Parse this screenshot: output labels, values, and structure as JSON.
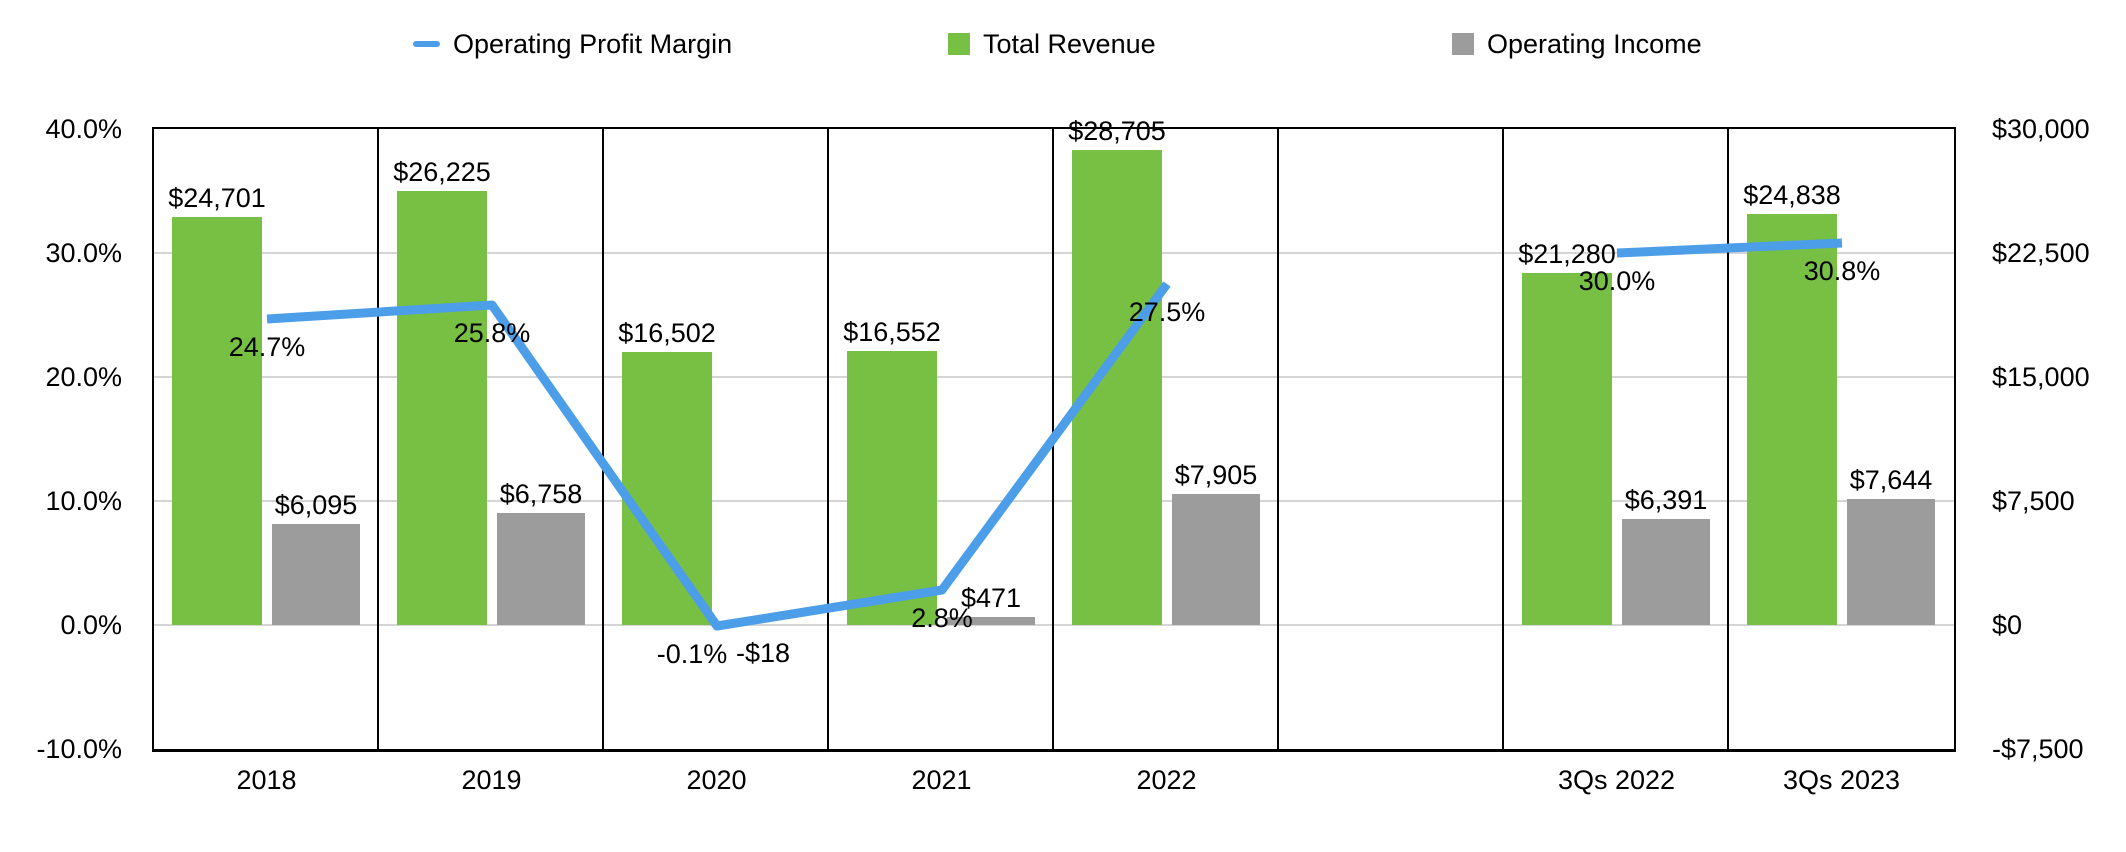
{
  "chart": {
    "legend": {
      "items": [
        {
          "label": "Operating Profit Margin",
          "marker": "line-dash-icon",
          "color": "#4D9EE8"
        },
        {
          "label": "Total Revenue",
          "marker": "square-icon",
          "color": "#77C043"
        },
        {
          "label": "Operating Income",
          "marker": "square-icon",
          "color": "#9C9C9C"
        }
      ]
    }
  },
  "chart_data": {
    "type": "combo-bar-line",
    "categories": [
      "2018",
      "2019",
      "2020",
      "2021",
      "2022",
      "",
      "3Qs 2022",
      "3Qs 2023"
    ],
    "series": [
      {
        "name": "Total Revenue",
        "type": "bar",
        "axis": "right",
        "color": "#77C043",
        "values": [
          24701,
          26225,
          16502,
          16552,
          28705,
          null,
          21280,
          24838
        ],
        "labels": [
          "$24,701",
          "$26,225",
          "$16,502",
          "$16,552",
          "$28,705",
          null,
          "$21,280",
          "$24,838"
        ]
      },
      {
        "name": "Operating Income",
        "type": "bar",
        "axis": "right",
        "color": "#9C9C9C",
        "values": [
          6095,
          6758,
          -18,
          471,
          7905,
          null,
          6391,
          7644
        ],
        "labels": [
          "$6,095",
          "$6,758",
          "-$18",
          "$471",
          "$7,905",
          null,
          "$6,391",
          "$7,644"
        ]
      },
      {
        "name": "Operating Profit Margin",
        "type": "line",
        "axis": "left",
        "color": "#4D9EE8",
        "values": [
          24.7,
          25.8,
          -0.1,
          2.8,
          27.5,
          null,
          30.0,
          30.8
        ],
        "labels": [
          "24.7%",
          "25.8%",
          "-0.1%",
          "2.8%",
          "27.5%",
          null,
          "30.0%",
          "30.8%"
        ]
      }
    ],
    "left_axis": {
      "tick_labels": [
        "40.0%",
        "30.0%",
        "20.0%",
        "10.0%",
        "0.0%",
        "-10.0%"
      ],
      "range": [
        -10,
        40
      ],
      "unit": "%"
    },
    "right_axis": {
      "tick_labels": [
        "$30,000",
        "$22,500",
        "$15,000",
        "$7,500",
        "$0",
        "-$7,500"
      ],
      "range": [
        -7500,
        30000
      ],
      "unit": "$"
    },
    "grid": true,
    "legend_position": "top",
    "gridline_color": "#D5D5D5",
    "frame_color": "#000000"
  }
}
